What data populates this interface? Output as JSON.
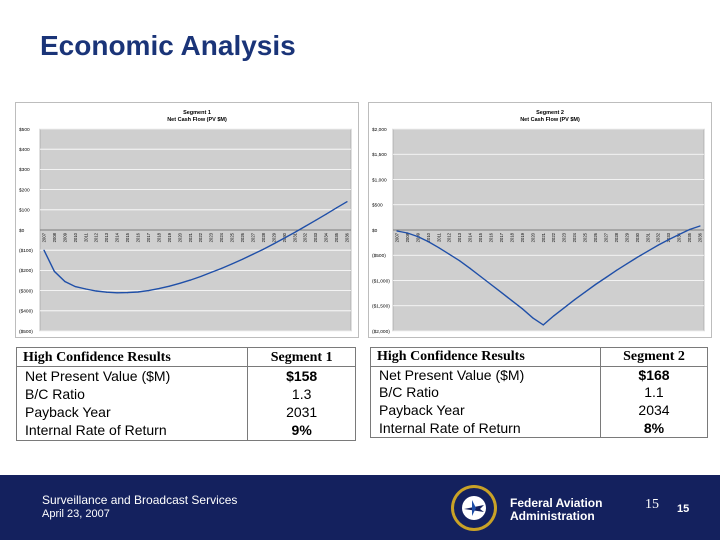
{
  "slide": {
    "title": "Economic Analysis",
    "colors": {
      "title": "#1a3478",
      "footer": "#14215e",
      "plot_bg": "#cfcfcf",
      "line": "#1f4fa8"
    }
  },
  "chart_data": [
    {
      "type": "line",
      "title": "Segment 1",
      "subtitle": "Net Cash Flow (PV $M)",
      "x": [
        "2007",
        "2008",
        "2009",
        "2010",
        "2011",
        "2012",
        "2013",
        "2014",
        "2015",
        "2016",
        "2017",
        "2018",
        "2019",
        "2020",
        "2021",
        "2022",
        "2023",
        "2024",
        "2025",
        "2026",
        "2027",
        "2028",
        "2029",
        "2030",
        "2031",
        "2032",
        "2033",
        "2034",
        "2035",
        "2036"
      ],
      "series": [
        {
          "values": [
            -100,
            -205,
            -255,
            -280,
            -292,
            -302,
            -308,
            -311,
            -310,
            -307,
            -300,
            -290,
            -278,
            -264,
            -248,
            -230,
            -210,
            -190,
            -168,
            -145,
            -120,
            -95,
            -68,
            -40,
            -12,
            18,
            48,
            78,
            110,
            140
          ]
        }
      ],
      "ylim": [
        -500,
        500
      ],
      "ytick_labels": [
        "$500",
        "$400",
        "$300",
        "$200",
        "$100",
        "$0",
        "($100)",
        "($200)",
        "($300)",
        "($400)",
        "($500)"
      ],
      "ytick_values": [
        500,
        400,
        300,
        200,
        100,
        0,
        -100,
        -200,
        -300,
        -400,
        -500
      ],
      "grid": true,
      "legend": "none"
    },
    {
      "type": "line",
      "title": "Segment 2",
      "subtitle": "Net Cash Flow (PV $M)",
      "x": [
        "2007",
        "2008",
        "2009",
        "2010",
        "2011",
        "2012",
        "2013",
        "2014",
        "2015",
        "2016",
        "2017",
        "2018",
        "2019",
        "2020",
        "2021",
        "2022",
        "2023",
        "2024",
        "2025",
        "2026",
        "2027",
        "2028",
        "2029",
        "2030",
        "2031",
        "2032",
        "2033",
        "2034",
        "2035",
        "2036"
      ],
      "series": [
        {
          "values": [
            -20,
            -60,
            -130,
            -230,
            -350,
            -480,
            -610,
            -760,
            -920,
            -1080,
            -1240,
            -1400,
            -1560,
            -1740,
            -1880,
            -1700,
            -1540,
            -1380,
            -1230,
            -1080,
            -940,
            -800,
            -670,
            -540,
            -420,
            -300,
            -190,
            -90,
            10,
            80
          ]
        }
      ],
      "ylim": [
        -2000,
        2000
      ],
      "ytick_labels": [
        "$2,000",
        "$1,500",
        "$1,000",
        "$500",
        "$0",
        "($500)",
        "($1,000)",
        "($1,500)",
        "($2,000)"
      ],
      "ytick_values": [
        2000,
        1500,
        1000,
        500,
        0,
        -500,
        -1000,
        -1500,
        -2000
      ],
      "grid": true,
      "legend": "none"
    }
  ],
  "results": [
    {
      "header_left": "High Confidence Results",
      "header_right": "Segment 1",
      "rows": [
        {
          "label": "Net Present Value ($M)",
          "value": "$158"
        },
        {
          "label": "B/C Ratio",
          "value": "1.3"
        },
        {
          "label": "Payback Year",
          "value": "2031"
        },
        {
          "label": "Internal Rate of Return",
          "value": "9%"
        }
      ]
    },
    {
      "header_left": "High Confidence Results",
      "header_right": "Segment 2",
      "rows": [
        {
          "label": "Net Present Value ($M)",
          "value": "$168"
        },
        {
          "label": "B/C Ratio",
          "value": "1.1"
        },
        {
          "label": "Payback Year",
          "value": "2034"
        },
        {
          "label": "Internal Rate of Return",
          "value": "8%"
        }
      ]
    }
  ],
  "footer": {
    "program": "Surveillance and Broadcast Services",
    "date": "April 23, 2007",
    "agency_line1": "Federal Aviation",
    "agency_line2": "Administration",
    "seal_icon": "faa-seal-icon",
    "seal_text": "FEDERAL AVIATION ADMINISTRATION",
    "page_number": "15",
    "page_number_small": "15"
  }
}
